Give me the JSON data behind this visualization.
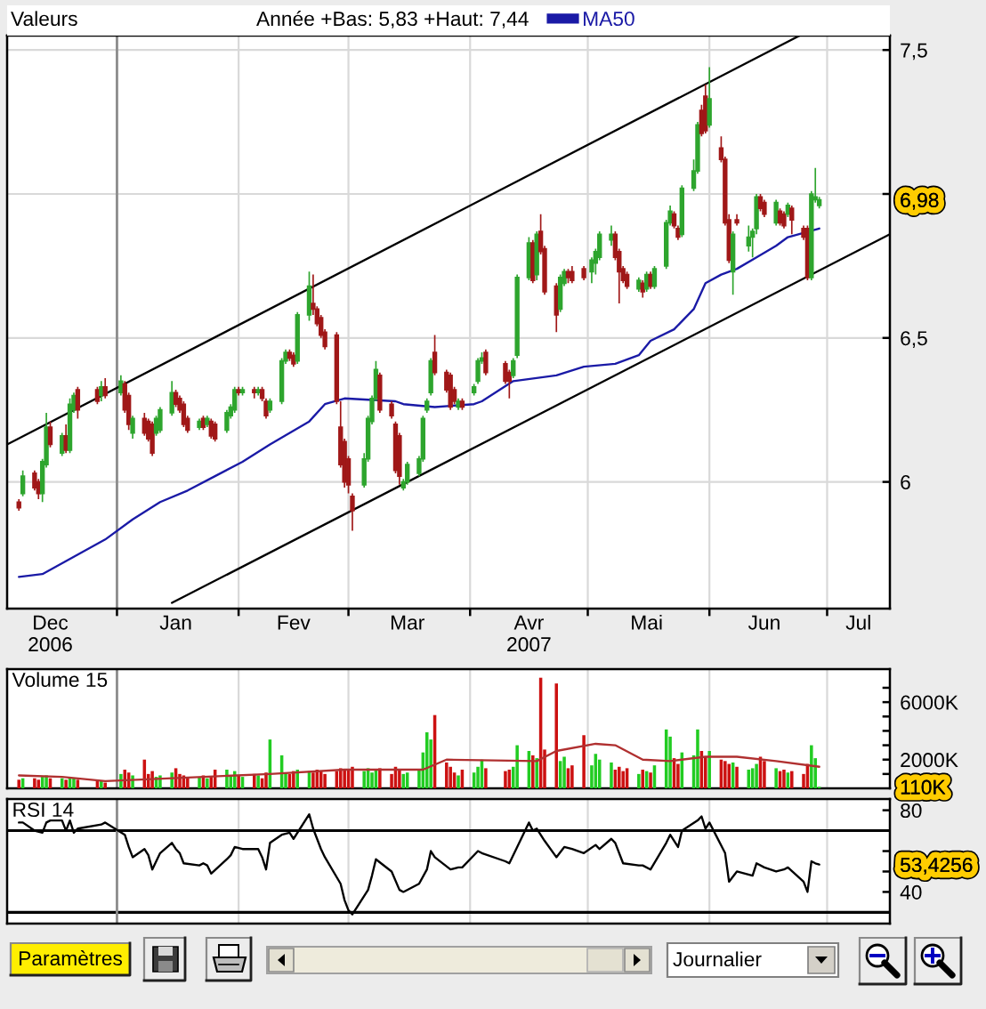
{
  "chart_data": [
    {
      "type": "candlestick",
      "legend_title": "Valeurs",
      "legend": "top",
      "subtitle": "Année +Bas: 5,83 +Haut: 7,44",
      "x": [
        "2006-12-07",
        "2006-12-08",
        "2006-12-11",
        "2006-12-12",
        "2006-12-13",
        "2006-12-14",
        "2006-12-15",
        "2006-12-18",
        "2006-12-19",
        "2006-12-20",
        "2006-12-21",
        "2006-12-22",
        "2006-12-27",
        "2006-12-28",
        "2006-12-29",
        "2007-01-02",
        "2007-01-03",
        "2007-01-04",
        "2007-01-05",
        "2007-01-08",
        "2007-01-09",
        "2007-01-10",
        "2007-01-11",
        "2007-01-12",
        "2007-01-15",
        "2007-01-16",
        "2007-01-17",
        "2007-01-18",
        "2007-01-19",
        "2007-01-22",
        "2007-01-23",
        "2007-01-24",
        "2007-01-25",
        "2007-01-26",
        "2007-01-29",
        "2007-01-30",
        "2007-01-31",
        "2007-02-01",
        "2007-02-02",
        "2007-02-05",
        "2007-02-06",
        "2007-02-07",
        "2007-02-08",
        "2007-02-09",
        "2007-02-12",
        "2007-02-13",
        "2007-02-14",
        "2007-02-15",
        "2007-02-16",
        "2007-02-19",
        "2007-02-20",
        "2007-02-21",
        "2007-02-22",
        "2007-02-23",
        "2007-02-26",
        "2007-02-27",
        "2007-02-28",
        "2007-03-01",
        "2007-03-02",
        "2007-03-05",
        "2007-03-06",
        "2007-03-07",
        "2007-03-08",
        "2007-03-09",
        "2007-03-12",
        "2007-03-13",
        "2007-03-14",
        "2007-03-15",
        "2007-03-16",
        "2007-03-19",
        "2007-03-20",
        "2007-03-21",
        "2007-03-22",
        "2007-03-23",
        "2007-03-26",
        "2007-03-27",
        "2007-03-28",
        "2007-03-29",
        "2007-03-30",
        "2007-04-02",
        "2007-04-03",
        "2007-04-04",
        "2007-04-05",
        "2007-04-10",
        "2007-04-11",
        "2007-04-12",
        "2007-04-13",
        "2007-04-16",
        "2007-04-17",
        "2007-04-18",
        "2007-04-19",
        "2007-04-20",
        "2007-04-23",
        "2007-04-24",
        "2007-04-25",
        "2007-04-26",
        "2007-04-27",
        "2007-04-30",
        "2007-05-02",
        "2007-05-03",
        "2007-05-04",
        "2007-05-07",
        "2007-05-08",
        "2007-05-09",
        "2007-05-10",
        "2007-05-11",
        "2007-05-14",
        "2007-05-15",
        "2007-05-16",
        "2007-05-17",
        "2007-05-18",
        "2007-05-21",
        "2007-05-22",
        "2007-05-23",
        "2007-05-24",
        "2007-05-25",
        "2007-05-28",
        "2007-05-29",
        "2007-05-30",
        "2007-05-31",
        "2007-06-01",
        "2007-06-04",
        "2007-06-05",
        "2007-06-06",
        "2007-06-07",
        "2007-06-08",
        "2007-06-11",
        "2007-06-12",
        "2007-06-13",
        "2007-06-14",
        "2007-06-15",
        "2007-06-18",
        "2007-06-19",
        "2007-06-20",
        "2007-06-21",
        "2007-06-22",
        "2007-06-25",
        "2007-06-26",
        "2007-06-27",
        "2007-06-28",
        "2007-06-29"
      ],
      "ohlc": [
        [
          5.93,
          5.94,
          5.9,
          5.91
        ],
        [
          5.96,
          6.04,
          5.95,
          6.02
        ],
        [
          6.03,
          6.04,
          5.97,
          5.98
        ],
        [
          6.0,
          6.01,
          5.94,
          5.96
        ],
        [
          5.96,
          6.08,
          5.93,
          6.07
        ],
        [
          6.06,
          6.24,
          6.05,
          6.19
        ],
        [
          6.19,
          6.21,
          6.12,
          6.13
        ],
        [
          6.1,
          6.17,
          6.09,
          6.16
        ],
        [
          6.16,
          6.2,
          6.1,
          6.11
        ],
        [
          6.11,
          6.29,
          6.1,
          6.27
        ],
        [
          6.25,
          6.31,
          6.24,
          6.3
        ],
        [
          6.32,
          6.33,
          6.22,
          6.25
        ],
        [
          6.32,
          6.33,
          6.27,
          6.28
        ],
        [
          6.3,
          6.35,
          6.28,
          6.33
        ],
        [
          6.33,
          6.36,
          6.29,
          6.3
        ],
        [
          6.31,
          6.37,
          6.3,
          6.35
        ],
        [
          6.34,
          6.35,
          6.24,
          6.25
        ],
        [
          6.3,
          6.31,
          6.18,
          6.2
        ],
        [
          6.17,
          6.23,
          6.15,
          6.22
        ],
        [
          6.22,
          6.24,
          6.16,
          6.17
        ],
        [
          6.21,
          6.22,
          6.14,
          6.15
        ],
        [
          6.2,
          6.21,
          6.09,
          6.1
        ],
        [
          6.17,
          6.23,
          6.16,
          6.22
        ],
        [
          6.18,
          6.26,
          6.17,
          6.25
        ],
        [
          6.24,
          6.35,
          6.23,
          6.31
        ],
        [
          6.31,
          6.32,
          6.26,
          6.27
        ],
        [
          6.29,
          6.3,
          6.24,
          6.25
        ],
        [
          6.27,
          6.28,
          6.19,
          6.2
        ],
        [
          6.22,
          6.23,
          6.17,
          6.18
        ],
        [
          6.19,
          6.22,
          6.18,
          6.21
        ],
        [
          6.22,
          6.23,
          6.18,
          6.19
        ],
        [
          6.2,
          6.23,
          6.19,
          6.22
        ],
        [
          6.21,
          6.22,
          6.15,
          6.16
        ],
        [
          6.2,
          6.21,
          6.14,
          6.15
        ],
        [
          6.18,
          6.25,
          6.17,
          6.24
        ],
        [
          6.23,
          6.27,
          6.22,
          6.26
        ],
        [
          6.25,
          6.33,
          6.24,
          6.32
        ],
        [
          6.32,
          6.33,
          6.3,
          6.31
        ],
        [
          6.31,
          6.33,
          6.3,
          6.32
        ],
        [
          6.32,
          6.33,
          6.29,
          6.31
        ],
        [
          6.31,
          6.33,
          6.3,
          6.32
        ],
        [
          6.32,
          6.33,
          6.28,
          6.29
        ],
        [
          6.28,
          6.29,
          6.22,
          6.23
        ],
        [
          6.25,
          6.29,
          6.24,
          6.28
        ],
        [
          6.28,
          6.43,
          6.27,
          6.42
        ],
        [
          6.42,
          6.46,
          6.41,
          6.45
        ],
        [
          6.45,
          6.46,
          6.42,
          6.43
        ],
        [
          6.44,
          6.45,
          6.4,
          6.41
        ],
        [
          6.42,
          6.59,
          6.41,
          6.58
        ],
        [
          6.58,
          6.73,
          6.56,
          6.68
        ],
        [
          6.62,
          6.72,
          6.58,
          6.6
        ],
        [
          6.6,
          6.61,
          6.54,
          6.55
        ],
        [
          6.57,
          6.58,
          6.5,
          6.51
        ],
        [
          6.52,
          6.53,
          6.46,
          6.47
        ],
        [
          6.51,
          6.52,
          6.27,
          6.28
        ],
        [
          6.19,
          6.28,
          6.05,
          6.06
        ],
        [
          6.14,
          6.15,
          5.98,
          6.0
        ],
        [
          6.08,
          6.09,
          5.96,
          5.99
        ],
        [
          5.95,
          5.96,
          5.83,
          5.9
        ],
        [
          5.99,
          6.1,
          5.98,
          6.08
        ],
        [
          6.08,
          6.23,
          6.07,
          6.22
        ],
        [
          6.21,
          6.3,
          6.2,
          6.29
        ],
        [
          6.29,
          6.42,
          6.28,
          6.39
        ],
        [
          6.37,
          6.38,
          6.24,
          6.25
        ],
        [
          6.27,
          6.28,
          6.22,
          6.23
        ],
        [
          6.2,
          6.21,
          6.03,
          6.04
        ],
        [
          6.16,
          6.17,
          5.99,
          6.02
        ],
        [
          5.98,
          6.01,
          5.97,
          6.0
        ],
        [
          6.0,
          6.07,
          5.99,
          6.06
        ],
        [
          6.03,
          6.09,
          6.02,
          6.08
        ],
        [
          6.08,
          6.23,
          6.07,
          6.22
        ],
        [
          6.25,
          6.29,
          6.24,
          6.28
        ],
        [
          6.31,
          6.43,
          6.3,
          6.42
        ],
        [
          6.45,
          6.51,
          6.37,
          6.38
        ],
        [
          6.38,
          6.39,
          6.31,
          6.32
        ],
        [
          6.37,
          6.38,
          6.25,
          6.26
        ],
        [
          6.32,
          6.33,
          6.27,
          6.28
        ],
        [
          6.26,
          6.29,
          6.25,
          6.28
        ],
        [
          6.28,
          6.29,
          6.25,
          6.26
        ],
        [
          6.31,
          6.34,
          6.3,
          6.33
        ],
        [
          6.35,
          6.43,
          6.34,
          6.42
        ],
        [
          6.42,
          6.45,
          6.41,
          6.43
        ],
        [
          6.45,
          6.46,
          6.37,
          6.38
        ],
        [
          6.41,
          6.42,
          6.34,
          6.35
        ],
        [
          6.38,
          6.39,
          6.29,
          6.35
        ],
        [
          6.37,
          6.43,
          6.36,
          6.42
        ],
        [
          6.44,
          6.72,
          6.43,
          6.71
        ],
        [
          6.71,
          6.85,
          6.7,
          6.83
        ],
        [
          6.83,
          6.84,
          6.69,
          6.7
        ],
        [
          6.72,
          6.87,
          6.7,
          6.86
        ],
        [
          6.87,
          6.93,
          6.79,
          6.8
        ],
        [
          6.81,
          6.82,
          6.65,
          6.66
        ],
        [
          6.68,
          6.69,
          6.52,
          6.58
        ],
        [
          6.6,
          6.72,
          6.59,
          6.71
        ],
        [
          6.69,
          6.74,
          6.68,
          6.73
        ],
        [
          6.73,
          6.74,
          6.69,
          6.71
        ],
        [
          6.73,
          6.75,
          6.69,
          6.7
        ],
        [
          6.74,
          6.75,
          6.7,
          6.71
        ],
        [
          6.73,
          6.78,
          6.69,
          6.77
        ],
        [
          6.76,
          6.81,
          6.72,
          6.8
        ],
        [
          6.78,
          6.87,
          6.77,
          6.86
        ],
        [
          6.84,
          6.89,
          6.82,
          6.86
        ],
        [
          6.86,
          6.87,
          6.77,
          6.78
        ],
        [
          6.8,
          6.81,
          6.62,
          6.73
        ],
        [
          6.74,
          6.75,
          6.69,
          6.7
        ],
        [
          6.72,
          6.73,
          6.67,
          6.68
        ],
        [
          6.67,
          6.71,
          6.66,
          6.7
        ],
        [
          6.69,
          6.7,
          6.64,
          6.66
        ],
        [
          6.67,
          6.73,
          6.66,
          6.72
        ],
        [
          6.72,
          6.73,
          6.67,
          6.68
        ],
        [
          6.68,
          6.75,
          6.67,
          6.74
        ],
        [
          6.75,
          6.91,
          6.74,
          6.9
        ],
        [
          6.9,
          6.96,
          6.89,
          6.94
        ],
        [
          6.93,
          6.94,
          6.88,
          6.89
        ],
        [
          6.88,
          6.89,
          6.84,
          6.85
        ],
        [
          6.86,
          7.03,
          6.85,
          7.02
        ],
        [
          7.02,
          7.12,
          7.01,
          7.08
        ],
        [
          7.08,
          7.25,
          7.07,
          7.24
        ],
        [
          7.29,
          7.31,
          7.2,
          7.21
        ],
        [
          7.34,
          7.38,
          7.21,
          7.22
        ],
        [
          7.24,
          7.44,
          7.23,
          7.33
        ],
        [
          7.16,
          7.2,
          7.11,
          7.12
        ],
        [
          7.12,
          7.13,
          6.89,
          6.9
        ],
        [
          6.91,
          6.93,
          6.76,
          6.77
        ],
        [
          6.73,
          6.87,
          6.65,
          6.86
        ],
        [
          6.91,
          6.93,
          6.89,
          6.9
        ],
        [
          6.82,
          6.89,
          6.8,
          6.85
        ],
        [
          6.85,
          6.88,
          6.78,
          6.87
        ],
        [
          6.88,
          7.0,
          6.86,
          6.99
        ],
        [
          6.99,
          7.0,
          6.94,
          6.95
        ],
        [
          6.97,
          6.98,
          6.92,
          6.93
        ],
        [
          6.9,
          6.98,
          6.89,
          6.97
        ],
        [
          6.94,
          6.95,
          6.89,
          6.9
        ],
        [
          6.93,
          6.94,
          6.88,
          6.89
        ],
        [
          6.93,
          6.97,
          6.92,
          6.96
        ],
        [
          6.95,
          6.96,
          6.86,
          6.91
        ],
        [
          6.88,
          6.89,
          6.84,
          6.85
        ],
        [
          6.88,
          6.89,
          6.7,
          6.71
        ],
        [
          6.71,
          7.01,
          6.7,
          7.0
        ],
        [
          6.98,
          7.09,
          6.97,
          6.99
        ],
        [
          6.96,
          6.99,
          6.95,
          6.98
        ]
      ],
      "colors": [
        "#a01818",
        "#2ea52e",
        "#a01818",
        "#a01818",
        "#2ea52e",
        "#2ea52e",
        "#a01818",
        "#2ea52e",
        "#a01818",
        "#2ea52e",
        "#2ea52e",
        "#a01818",
        "#a01818",
        "#2ea52e",
        "#a01818",
        "#2ea52e",
        "#a01818",
        "#a01818",
        "#2ea52e",
        "#a01818",
        "#a01818",
        "#a01818",
        "#2ea52e",
        "#2ea52e",
        "#2ea52e",
        "#a01818",
        "#a01818",
        "#a01818",
        "#a01818",
        "#2ea52e",
        "#a01818",
        "#2ea52e",
        "#a01818",
        "#a01818",
        "#2ea52e",
        "#2ea52e",
        "#2ea52e",
        "#a01818",
        "#2ea52e",
        "#a01818",
        "#2ea52e",
        "#a01818",
        "#a01818",
        "#2ea52e",
        "#2ea52e",
        "#2ea52e",
        "#a01818",
        "#a01818",
        "#2ea52e",
        "#2ea52e",
        "#a01818",
        "#a01818",
        "#a01818",
        "#a01818",
        "#a01818",
        "#a01818",
        "#a01818",
        "#a01818",
        "#a01818",
        "#2ea52e",
        "#2ea52e",
        "#2ea52e",
        "#2ea52e",
        "#a01818",
        "#a01818",
        "#a01818",
        "#a01818",
        "#2ea52e",
        "#2ea52e",
        "#2ea52e",
        "#2ea52e",
        "#2ea52e",
        "#2ea52e",
        "#a01818",
        "#a01818",
        "#a01818",
        "#a01818",
        "#2ea52e",
        "#a01818",
        "#2ea52e",
        "#2ea52e",
        "#2ea52e",
        "#a01818",
        "#a01818",
        "#a01818",
        "#2ea52e",
        "#2ea52e",
        "#2ea52e",
        "#a01818",
        "#2ea52e",
        "#a01818",
        "#a01818",
        "#a01818",
        "#2ea52e",
        "#2ea52e",
        "#a01818",
        "#a01818",
        "#a01818",
        "#2ea52e",
        "#2ea52e",
        "#2ea52e",
        "#2ea52e",
        "#a01818",
        "#a01818",
        "#a01818",
        "#a01818",
        "#2ea52e",
        "#a01818",
        "#2ea52e",
        "#a01818",
        "#2ea52e",
        "#2ea52e",
        "#2ea52e",
        "#a01818",
        "#a01818",
        "#2ea52e",
        "#2ea52e",
        "#2ea52e",
        "#a01818",
        "#a01818",
        "#2ea52e",
        "#a01818",
        "#a01818",
        "#a01818",
        "#2ea52e",
        "#a01818",
        "#2ea52e",
        "#2ea52e",
        "#2ea52e",
        "#a01818",
        "#a01818",
        "#2ea52e",
        "#a01818",
        "#a01818",
        "#2ea52e",
        "#a01818",
        "#a01818",
        "#a01818",
        "#2ea52e",
        "#2ea52e",
        "#2ea52e"
      ],
      "series": [
        {
          "type": "line",
          "name": "MA50",
          "color": "#1a1aa6",
          "x": [
            "2006-12-07",
            "2006-12-13",
            "2006-12-21",
            "2006-12-29",
            "2007-01-05",
            "2007-01-12",
            "2007-01-19",
            "2007-01-26",
            "2007-02-02",
            "2007-02-09",
            "2007-02-19",
            "2007-02-23",
            "2007-02-28",
            "2007-03-13",
            "2007-03-15",
            "2007-03-23",
            "2007-04-02",
            "2007-04-04",
            "2007-04-12",
            "2007-04-23",
            "2007-04-30",
            "2007-05-08",
            "2007-05-14",
            "2007-05-17",
            "2007-05-23",
            "2007-05-28",
            "2007-05-31",
            "2007-06-04",
            "2007-06-08",
            "2007-06-13",
            "2007-06-18",
            "2007-06-21",
            "2007-06-29"
          ],
          "values": [
            5.67,
            5.68,
            5.74,
            5.8,
            5.87,
            5.93,
            5.97,
            6.02,
            6.07,
            6.13,
            6.21,
            6.27,
            6.29,
            6.28,
            6.27,
            6.26,
            6.27,
            6.28,
            6.35,
            6.37,
            6.4,
            6.41,
            6.44,
            6.49,
            6.53,
            6.6,
            6.69,
            6.72,
            6.74,
            6.78,
            6.82,
            6.85,
            6.88
          ]
        },
        {
          "type": "line",
          "color": "#000000",
          "x": [
            "2006-12-04",
            "2007-06-24"
          ],
          "values": [
            6.13,
            7.55
          ]
        },
        {
          "type": "line",
          "color": "#000000",
          "x": [
            "2007-01-15",
            "2007-07-17"
          ],
          "values": [
            5.58,
            6.86
          ]
        }
      ],
      "xlim": [
        "2006-12-04",
        "2007-07-17"
      ],
      "xticks": [
        {
          "value": "2007-01-01",
          "label": null
        },
        {
          "value": "2007-02-01",
          "label": null
        },
        {
          "value": "2007-03-01",
          "label": null
        },
        {
          "value": "2007-04-01",
          "label": null
        },
        {
          "value": "2007-05-01",
          "label": null
        },
        {
          "value": "2007-06-01",
          "label": null
        },
        {
          "value": "2007-07-01",
          "label": null
        },
        {
          "value": "2006-12-15",
          "label": "Dec\n2006"
        },
        {
          "value": "2007-01-16",
          "label": "Jan"
        },
        {
          "value": "2007-02-15",
          "label": "Fev"
        },
        {
          "value": "2007-03-16",
          "label": "Mar"
        },
        {
          "value": "2007-04-16",
          "label": "Avr\n2007"
        },
        {
          "value": "2007-05-16",
          "label": "Mai"
        },
        {
          "value": "2007-06-15",
          "label": "Jun"
        },
        {
          "value": "2007-07-09",
          "label": "Jul"
        }
      ],
      "ylim": [
        5.56,
        7.55
      ],
      "yticks": [
        {
          "value": 6,
          "label": "6"
        },
        {
          "value": 6.5,
          "label": "6,5"
        },
        {
          "value": 6.98,
          "label": "6,98"
        },
        {
          "value": 7,
          "label": null
        },
        {
          "value": 7.5,
          "label": "7,5"
        }
      ],
      "grid": true,
      "ref_lines": [
        {
          "axis": "x",
          "value": "2007-01-01",
          "color": "#8c8c8c"
        }
      ]
    },
    {
      "type": "bar",
      "title": "Volume 15",
      "x": [
        "2006-12-07",
        "2006-12-08",
        "2006-12-11",
        "2006-12-12",
        "2006-12-13",
        "2006-12-14",
        "2006-12-15",
        "2006-12-18",
        "2006-12-19",
        "2006-12-20",
        "2006-12-21",
        "2006-12-22",
        "2006-12-27",
        "2006-12-28",
        "2006-12-29",
        "2007-01-02",
        "2007-01-03",
        "2007-01-04",
        "2007-01-05",
        "2007-01-08",
        "2007-01-09",
        "2007-01-10",
        "2007-01-11",
        "2007-01-12",
        "2007-01-15",
        "2007-01-16",
        "2007-01-17",
        "2007-01-18",
        "2007-01-19",
        "2007-01-22",
        "2007-01-23",
        "2007-01-24",
        "2007-01-25",
        "2007-01-26",
        "2007-01-29",
        "2007-01-30",
        "2007-01-31",
        "2007-02-01",
        "2007-02-02",
        "2007-02-05",
        "2007-02-06",
        "2007-02-07",
        "2007-02-08",
        "2007-02-09",
        "2007-02-12",
        "2007-02-13",
        "2007-02-14",
        "2007-02-15",
        "2007-02-16",
        "2007-02-19",
        "2007-02-20",
        "2007-02-21",
        "2007-02-22",
        "2007-02-23",
        "2007-02-26",
        "2007-02-27",
        "2007-02-28",
        "2007-03-01",
        "2007-03-02",
        "2007-03-05",
        "2007-03-06",
        "2007-03-07",
        "2007-03-08",
        "2007-03-09",
        "2007-03-12",
        "2007-03-13",
        "2007-03-14",
        "2007-03-15",
        "2007-03-16",
        "2007-03-19",
        "2007-03-20",
        "2007-03-21",
        "2007-03-22",
        "2007-03-23",
        "2007-03-26",
        "2007-03-27",
        "2007-03-28",
        "2007-03-29",
        "2007-03-30",
        "2007-04-02",
        "2007-04-03",
        "2007-04-04",
        "2007-04-05",
        "2007-04-10",
        "2007-04-11",
        "2007-04-12",
        "2007-04-13",
        "2007-04-16",
        "2007-04-17",
        "2007-04-18",
        "2007-04-19",
        "2007-04-20",
        "2007-04-23",
        "2007-04-24",
        "2007-04-25",
        "2007-04-26",
        "2007-04-27",
        "2007-04-30",
        "2007-05-02",
        "2007-05-03",
        "2007-05-04",
        "2007-05-07",
        "2007-05-08",
        "2007-05-09",
        "2007-05-10",
        "2007-05-11",
        "2007-05-14",
        "2007-05-15",
        "2007-05-16",
        "2007-05-17",
        "2007-05-18",
        "2007-05-21",
        "2007-05-22",
        "2007-05-23",
        "2007-05-24",
        "2007-05-25",
        "2007-05-28",
        "2007-05-29",
        "2007-05-30",
        "2007-05-31",
        "2007-06-01",
        "2007-06-04",
        "2007-06-05",
        "2007-06-06",
        "2007-06-07",
        "2007-06-08",
        "2007-06-11",
        "2007-06-12",
        "2007-06-13",
        "2007-06-14",
        "2007-06-15",
        "2007-06-18",
        "2007-06-19",
        "2007-06-20",
        "2007-06-21",
        "2007-06-22",
        "2007-06-25",
        "2007-06-26",
        "2007-06-27",
        "2007-06-28",
        "2007-06-29"
      ],
      "series": [
        {
          "values": [
            600,
            700,
            700,
            600,
            800,
            900,
            700,
            700,
            600,
            800,
            700,
            600,
            500,
            500,
            400,
            1000,
            1300,
            1100,
            900,
            2000,
            1000,
            1200,
            800,
            900,
            1100,
            1400,
            1000,
            900,
            700,
            800,
            900,
            700,
            800,
            1300,
            1300,
            900,
            1200,
            900,
            800,
            1000,
            900,
            700,
            1100,
            3400,
            2300,
            1100,
            1000,
            1200,
            1300,
            1200,
            1100,
            1300,
            1200,
            1000,
            1200,
            1400,
            1300,
            1300,
            1500,
            1200,
            1400,
            1100,
            1300,
            1400,
            1000,
            1500,
            1300,
            1000,
            1100,
            1300,
            2500,
            3900,
            3400,
            5100,
            1800,
            1500,
            1100,
            900,
            1300,
            1100,
            1500,
            2000,
            1400,
            1200,
            1300,
            1500,
            3000,
            2600,
            2300,
            2100,
            7700,
            2700,
            7300,
            1900,
            2200,
            1400,
            1600,
            3700,
            1600,
            2400,
            2000,
            1800,
            1300,
            1500,
            1200,
            1400,
            1000,
            1300,
            1200,
            1100,
            1600,
            4100,
            3600,
            2100,
            1700,
            2500,
            2300,
            4100,
            2600,
            2200,
            2600,
            2000,
            1900,
            1700,
            1800,
            1500,
            1300,
            1400,
            1700,
            2200,
            1900,
            1400,
            1200,
            1300,
            1100,
            1200,
            1000,
            1700,
            3000,
            2100,
            110
          ],
          "colors": [
            "#cc1111",
            "#22cc22",
            "#cc1111",
            "#cc1111",
            "#22cc22",
            "#22cc22",
            "#cc1111",
            "#22cc22",
            "#cc1111",
            "#22cc22",
            "#22cc22",
            "#cc1111",
            "#cc1111",
            "#22cc22",
            "#cc1111",
            "#22cc22",
            "#cc1111",
            "#cc1111",
            "#22cc22",
            "#cc1111",
            "#cc1111",
            "#cc1111",
            "#22cc22",
            "#22cc22",
            "#22cc22",
            "#cc1111",
            "#cc1111",
            "#cc1111",
            "#cc1111",
            "#22cc22",
            "#cc1111",
            "#22cc22",
            "#cc1111",
            "#cc1111",
            "#22cc22",
            "#22cc22",
            "#22cc22",
            "#cc1111",
            "#22cc22",
            "#cc1111",
            "#22cc22",
            "#cc1111",
            "#cc1111",
            "#22cc22",
            "#22cc22",
            "#22cc22",
            "#cc1111",
            "#cc1111",
            "#22cc22",
            "#22cc22",
            "#cc1111",
            "#cc1111",
            "#cc1111",
            "#cc1111",
            "#cc1111",
            "#cc1111",
            "#cc1111",
            "#cc1111",
            "#cc1111",
            "#22cc22",
            "#22cc22",
            "#22cc22",
            "#22cc22",
            "#cc1111",
            "#cc1111",
            "#cc1111",
            "#cc1111",
            "#22cc22",
            "#22cc22",
            "#22cc22",
            "#22cc22",
            "#22cc22",
            "#22cc22",
            "#cc1111",
            "#cc1111",
            "#cc1111",
            "#cc1111",
            "#22cc22",
            "#cc1111",
            "#22cc22",
            "#22cc22",
            "#22cc22",
            "#cc1111",
            "#cc1111",
            "#cc1111",
            "#22cc22",
            "#22cc22",
            "#22cc22",
            "#cc1111",
            "#22cc22",
            "#cc1111",
            "#cc1111",
            "#cc1111",
            "#22cc22",
            "#22cc22",
            "#cc1111",
            "#cc1111",
            "#cc1111",
            "#22cc22",
            "#22cc22",
            "#22cc22",
            "#22cc22",
            "#cc1111",
            "#cc1111",
            "#cc1111",
            "#cc1111",
            "#22cc22",
            "#cc1111",
            "#22cc22",
            "#cc1111",
            "#22cc22",
            "#22cc22",
            "#22cc22",
            "#cc1111",
            "#cc1111",
            "#22cc22",
            "#22cc22",
            "#22cc22",
            "#cc1111",
            "#cc1111",
            "#22cc22",
            "#cc1111",
            "#cc1111",
            "#cc1111",
            "#22cc22",
            "#cc1111",
            "#22cc22",
            "#22cc22",
            "#22cc22",
            "#cc1111",
            "#cc1111",
            "#22cc22",
            "#cc1111",
            "#cc1111",
            "#22cc22",
            "#cc1111",
            "#cc1111",
            "#cc1111",
            "#22cc22",
            "#22cc22",
            "#22cc22"
          ]
        },
        {
          "type": "line",
          "color": "#b03030",
          "x": [
            "2006-12-07",
            "2006-12-18",
            "2006-12-29",
            "2007-01-23",
            "2007-02-09",
            "2007-02-28",
            "2007-03-20",
            "2007-03-26",
            "2007-04-18",
            "2007-04-23",
            "2007-05-03",
            "2007-05-08",
            "2007-05-15",
            "2007-05-22",
            "2007-05-31",
            "2007-06-08",
            "2007-06-18",
            "2007-06-29"
          ],
          "values": [
            900,
            800,
            500,
            800,
            1000,
            1300,
            1300,
            2000,
            1900,
            2600,
            3100,
            3000,
            2000,
            1900,
            2200,
            2200,
            1900,
            1500
          ]
        }
      ],
      "xlim": [
        "2006-12-04",
        "2007-07-17"
      ],
      "xticks": [
        {
          "value": "2007-01-01",
          "label": null
        },
        {
          "value": "2007-02-01",
          "label": null
        },
        {
          "value": "2007-03-01",
          "label": null
        },
        {
          "value": "2007-04-01",
          "label": null
        },
        {
          "value": "2007-05-01",
          "label": null
        },
        {
          "value": "2007-06-01",
          "label": null
        },
        {
          "value": "2007-07-01",
          "label": null
        }
      ],
      "ylim": [
        0,
        8300
      ],
      "yticks": [
        {
          "value": 110,
          "label": "110K"
        },
        {
          "value": 1000,
          "label": null
        },
        {
          "value": 2000,
          "label": "2000K"
        },
        {
          "value": 3000,
          "label": null
        },
        {
          "value": 4000,
          "label": null
        },
        {
          "value": 5000,
          "label": null
        },
        {
          "value": 6000,
          "label": "6000K"
        },
        {
          "value": 7000,
          "label": null
        }
      ],
      "tick_labels": "y",
      "grid": "x",
      "ref_lines": [
        {
          "axis": "x",
          "value": "2007-01-01",
          "color": "#8c8c8c"
        }
      ]
    },
    {
      "type": "line",
      "title": "RSI 14",
      "series": [
        {
          "color": "#000000",
          "x": [
            "2006-12-07",
            "2006-12-08",
            "2006-12-11",
            "2006-12-13",
            "2006-12-14",
            "2006-12-15",
            "2006-12-18",
            "2006-12-19",
            "2006-12-20",
            "2006-12-21",
            "2006-12-22",
            "2006-12-28",
            "2006-12-29",
            "2007-01-03",
            "2007-01-04",
            "2007-01-05",
            "2007-01-08",
            "2007-01-09",
            "2007-01-10",
            "2007-01-12",
            "2007-01-15",
            "2007-01-16",
            "2007-01-17",
            "2007-01-18",
            "2007-01-22",
            "2007-01-23",
            "2007-01-24",
            "2007-01-25",
            "2007-01-29",
            "2007-01-30",
            "2007-01-31",
            "2007-02-02",
            "2007-02-06",
            "2007-02-07",
            "2007-02-08",
            "2007-02-09",
            "2007-02-12",
            "2007-02-14",
            "2007-02-15",
            "2007-02-19",
            "2007-02-20",
            "2007-02-22",
            "2007-02-23",
            "2007-02-27",
            "2007-02-28",
            "2007-03-01",
            "2007-03-02",
            "2007-03-06",
            "2007-03-07",
            "2007-03-08",
            "2007-03-12",
            "2007-03-14",
            "2007-03-15",
            "2007-03-19",
            "2007-03-21",
            "2007-03-22",
            "2007-03-23",
            "2007-03-27",
            "2007-03-29",
            "2007-03-30",
            "2007-04-03",
            "2007-04-04",
            "2007-04-10",
            "2007-04-11",
            "2007-04-13",
            "2007-04-16",
            "2007-04-17",
            "2007-04-18",
            "2007-04-20",
            "2007-04-23",
            "2007-04-25",
            "2007-04-27",
            "2007-04-30",
            "2007-05-03",
            "2007-05-04",
            "2007-05-07",
            "2007-05-08",
            "2007-05-10",
            "2007-05-14",
            "2007-05-15",
            "2007-05-17",
            "2007-05-21",
            "2007-05-22",
            "2007-05-24",
            "2007-05-25",
            "2007-05-29",
            "2007-05-30",
            "2007-05-31",
            "2007-06-01",
            "2007-06-05",
            "2007-06-06",
            "2007-06-08",
            "2007-06-12",
            "2007-06-13",
            "2007-06-15",
            "2007-06-18",
            "2007-06-20",
            "2007-06-21",
            "2007-06-25",
            "2007-06-26",
            "2007-06-27",
            "2007-06-28",
            "2007-06-29"
          ],
          "values": [
            74,
            74,
            70,
            69,
            74,
            75,
            75,
            70,
            75,
            69,
            71,
            73,
            74,
            68,
            62,
            57,
            61,
            58,
            51,
            59,
            64,
            61,
            59,
            54,
            53,
            54,
            53,
            49,
            56,
            58,
            62,
            61,
            61,
            57,
            51,
            64,
            68,
            69,
            66,
            78,
            71,
            61,
            57,
            44,
            36,
            31,
            29,
            41,
            48,
            56,
            50,
            41,
            40,
            44,
            51,
            60,
            57,
            51,
            52,
            52,
            60,
            59,
            55,
            54,
            62,
            74,
            70,
            71,
            65,
            57,
            62,
            61,
            59,
            63,
            61,
            66,
            64,
            54,
            53,
            53,
            51,
            64,
            68,
            62,
            70,
            75,
            77,
            71,
            74,
            59,
            45,
            50,
            48,
            54,
            52,
            50,
            51,
            52,
            45,
            40,
            55,
            54,
            53.4256
          ]
        }
      ],
      "xlim": [
        "2006-12-04",
        "2007-07-17"
      ],
      "xticks": [
        {
          "value": "2007-01-01",
          "label": null
        },
        {
          "value": "2007-02-01",
          "label": null
        },
        {
          "value": "2007-03-01",
          "label": null
        },
        {
          "value": "2007-04-01",
          "label": null
        },
        {
          "value": "2007-05-01",
          "label": null
        },
        {
          "value": "2007-06-01",
          "label": null
        },
        {
          "value": "2007-07-01",
          "label": null
        }
      ],
      "ylim": [
        24.5,
        85.5
      ],
      "yticks": [
        {
          "value": 40,
          "label": "40"
        },
        {
          "value": 50,
          "label": null
        },
        {
          "value": 53.4256,
          "label": "53,4256"
        },
        {
          "value": 60,
          "label": null
        },
        {
          "value": 80,
          "label": "80"
        }
      ],
      "tick_labels": "y",
      "grid": "x",
      "ref_lines": [
        {
          "axis": "y",
          "value": 70,
          "color": "#000000"
        },
        {
          "axis": "y",
          "value": 30,
          "color": "#000000"
        },
        {
          "axis": "x",
          "value": "2007-01-01",
          "color": "#8c8c8c"
        }
      ]
    },
    {
      "type": "other",
      "annotations": [
        "Paramètres",
        "Journalier"
      ]
    }
  ]
}
